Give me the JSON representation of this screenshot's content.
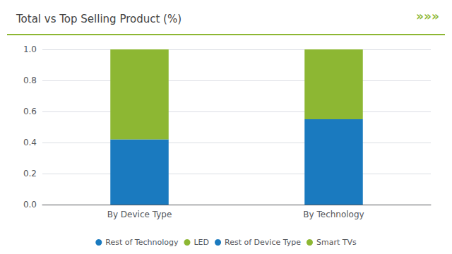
{
  "chart_data": {
    "type": "bar",
    "title": "Total vs Top Selling Product (%)",
    "annotations": [
      "»»»"
    ],
    "categories": [
      "By Device Type",
      "By Technology"
    ],
    "series": [
      {
        "name": "Rest of Technology",
        "color": "#1a7abf",
        "values": [
          null,
          0.55
        ]
      },
      {
        "name": "LED",
        "color": "#8db733",
        "values": [
          null,
          0.45
        ]
      },
      {
        "name": "Rest of Device Type",
        "color": "#1a7abf",
        "values": [
          0.42,
          null
        ]
      },
      {
        "name": "Smart TVs",
        "color": "#8db733",
        "values": [
          0.58,
          null
        ]
      }
    ],
    "stacked": true,
    "ylim": [
      0.0,
      1.0
    ],
    "yticks": [
      {
        "value": 0,
        "label": "0.0"
      },
      0.2,
      0.4,
      0.6,
      0.8,
      {
        "value": 1,
        "label": "1.0"
      }
    ],
    "grid": true,
    "legend": "bottom"
  }
}
